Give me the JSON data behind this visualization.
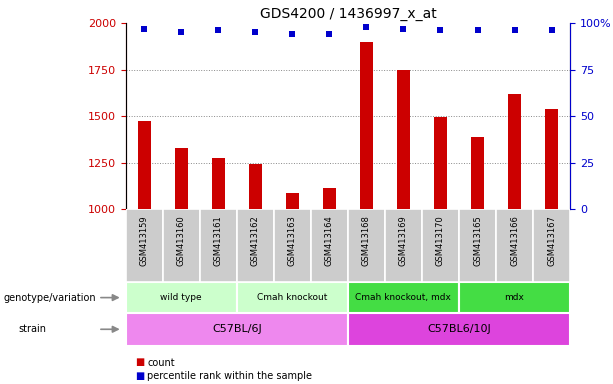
{
  "title": "GDS4200 / 1436997_x_at",
  "samples": [
    "GSM413159",
    "GSM413160",
    "GSM413161",
    "GSM413162",
    "GSM413163",
    "GSM413164",
    "GSM413168",
    "GSM413169",
    "GSM413170",
    "GSM413165",
    "GSM413166",
    "GSM413167"
  ],
  "counts": [
    1475,
    1330,
    1275,
    1245,
    1090,
    1115,
    1900,
    1750,
    1495,
    1390,
    1620,
    1540
  ],
  "percentiles": [
    97,
    95,
    96,
    95,
    94,
    94,
    98,
    97,
    96,
    96,
    96,
    96
  ],
  "ylim_left": [
    1000,
    2000
  ],
  "ylim_right": [
    0,
    100
  ],
  "yticks_left": [
    1000,
    1250,
    1500,
    1750,
    2000
  ],
  "yticks_right": [
    0,
    25,
    50,
    75,
    100
  ],
  "ytick_right_labels": [
    "0",
    "25",
    "50",
    "75",
    "100%"
  ],
  "bar_color": "#cc0000",
  "dot_color": "#0000cc",
  "bar_width": 0.35,
  "genotype_groups": [
    {
      "label": "wild type",
      "start": 0,
      "end": 2,
      "color": "#ccffcc"
    },
    {
      "label": "Cmah knockout",
      "start": 3,
      "end": 5,
      "color": "#ccffcc"
    },
    {
      "label": "Cmah knockout, mdx",
      "start": 6,
      "end": 8,
      "color": "#44dd44"
    },
    {
      "label": "mdx",
      "start": 9,
      "end": 11,
      "color": "#44dd44"
    }
  ],
  "strain_groups": [
    {
      "label": "C57BL/6J",
      "start": 0,
      "end": 5,
      "color": "#ee88ee"
    },
    {
      "label": "C57BL6/10J",
      "start": 6,
      "end": 11,
      "color": "#dd44dd"
    }
  ],
  "sample_box_color": "#cccccc",
  "legend_count_label": "count",
  "legend_pct_label": "percentile rank within the sample",
  "genotype_label": "genotype/variation",
  "strain_label": "strain",
  "grid_color": "#888888",
  "grid_linestyle": ":",
  "grid_linewidth": 0.7,
  "title_fontsize": 10,
  "axis_fontsize": 8,
  "label_fontsize": 7,
  "sample_fontsize": 6,
  "row_label_fontsize": 7,
  "geno_fontsize": 6.5,
  "strain_fontsize": 8
}
